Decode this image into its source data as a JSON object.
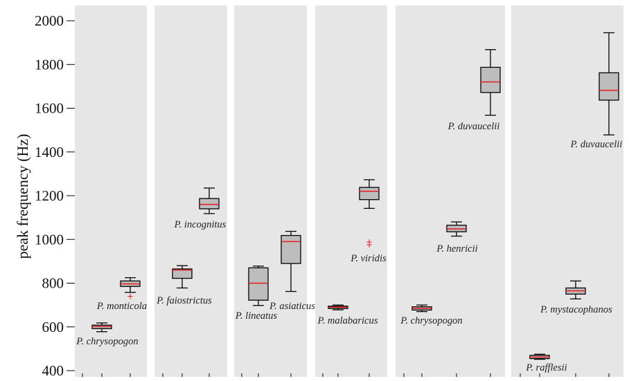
{
  "chart_data": {
    "type": "box",
    "ylabel": "peak frequency (Hz)",
    "ylim": [
      380,
      2060
    ],
    "y_ticks": [
      400,
      600,
      800,
      1000,
      1200,
      1400,
      1600,
      1800,
      2000
    ],
    "panels": [
      {
        "boxes": [
          {
            "label": "P. chrysopogon",
            "whisker_low": 578,
            "q1": 592,
            "median": 602,
            "q3": 608,
            "whisker_high": 618,
            "outliers": []
          },
          {
            "label": "P. monticola",
            "whisker_low": 758,
            "q1": 785,
            "median": 797,
            "q3": 810,
            "whisker_high": 825,
            "outliers": [
              740
            ]
          }
        ]
      },
      {
        "boxes": [
          {
            "label": "P. faiostrictus",
            "whisker_low": 778,
            "q1": 822,
            "median": 860,
            "q3": 865,
            "whisker_high": 880,
            "outliers": []
          },
          {
            "label": "P. incognitus",
            "whisker_low": 1118,
            "q1": 1140,
            "median": 1160,
            "q3": 1187,
            "whisker_high": 1235,
            "outliers": []
          }
        ]
      },
      {
        "boxes": [
          {
            "label": "P. lineatus",
            "whisker_low": 698,
            "q1": 722,
            "median": 800,
            "q3": 870,
            "whisker_high": 878,
            "outliers": []
          },
          {
            "label": "P. asiaticus",
            "whisker_low": 762,
            "q1": 890,
            "median": 990,
            "q3": 1018,
            "whisker_high": 1037,
            "outliers": []
          }
        ]
      },
      {
        "boxes": [
          {
            "label": "P. malabaricus",
            "whisker_low": 678,
            "q1": 684,
            "median": 690,
            "q3": 695,
            "whisker_high": 700,
            "outliers": []
          },
          {
            "label": "P. viridis",
            "whisker_low": 1142,
            "q1": 1182,
            "median": 1220,
            "q3": 1238,
            "whisker_high": 1273,
            "outliers": [
              988,
              975
            ]
          }
        ]
      },
      {
        "boxes": [
          {
            "label": "P. chrysopogon",
            "whisker_low": 670,
            "q1": 677,
            "median": 685,
            "q3": 692,
            "whisker_high": 700,
            "outliers": []
          },
          {
            "label": "P. henricii",
            "whisker_low": 1015,
            "q1": 1035,
            "median": 1048,
            "q3": 1065,
            "whisker_high": 1080,
            "outliers": []
          },
          {
            "label": "P. duvaucelii",
            "whisker_low": 1568,
            "q1": 1672,
            "median": 1720,
            "q3": 1787,
            "whisker_high": 1868,
            "outliers": []
          }
        ]
      },
      {
        "boxes": [
          {
            "label": "P. rafflesii",
            "whisker_low": 452,
            "q1": 455,
            "median": 462,
            "q3": 470,
            "whisker_high": 475,
            "outliers": []
          },
          {
            "label": "P. mystacophanos",
            "whisker_low": 728,
            "q1": 750,
            "median": 765,
            "q3": 778,
            "whisker_high": 810,
            "outliers": []
          },
          {
            "label": "P. duvaucelii",
            "whisker_low": 1478,
            "q1": 1637,
            "median": 1682,
            "q3": 1762,
            "whisker_high": 1945,
            "outliers": []
          }
        ]
      }
    ]
  }
}
